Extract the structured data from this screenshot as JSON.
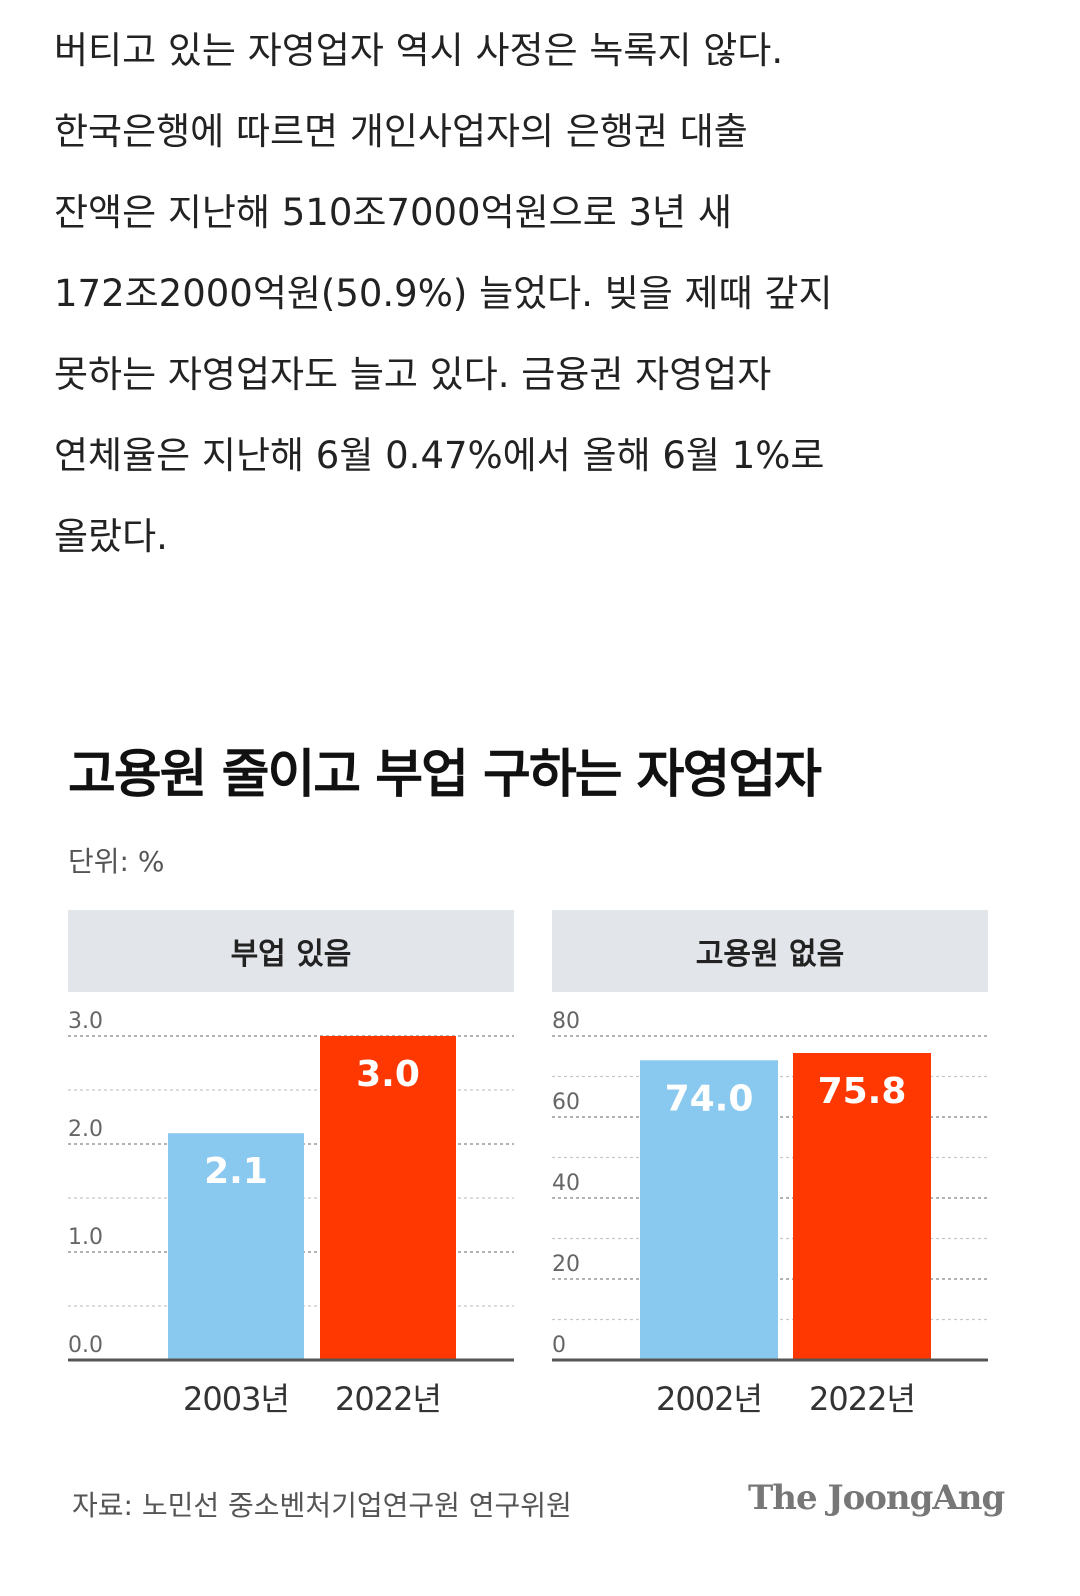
{
  "article": {
    "lines": [
      "버티고 있는 자영업자 역시 사정은 녹록지 않다.",
      "한국은행에 따르면 개인사업자의 은행권 대출",
      "잔액은 지난해 510조7000억원으로 3년 새",
      "172조2000억원(50.9%) 늘었다. 빚을 제때 갚지",
      "못하는 자영업자도 늘고 있다. 금융권 자영업자",
      "연체율은 지난해 6월 0.47%에서 올해 6월 1%로",
      "올랐다."
    ]
  },
  "infographic": {
    "title": "고용원 줄이고 부업 구하는 자영업자",
    "unit": "단위: %",
    "source": "자료: 노민선 중소벤처기업연구원 연구위원",
    "brand": "The JoongAng"
  },
  "colors": {
    "blue": "#8ac9ef",
    "red": "#ff3700",
    "panel_bg": "#e2e6ea"
  },
  "chart_data": [
    {
      "type": "bar",
      "title": "부업 있음",
      "categories": [
        "2003년",
        "2022년"
      ],
      "values": [
        2.1,
        3.0
      ],
      "value_labels": [
        "2.1",
        "3.0"
      ],
      "bar_colors": [
        "#8ac9ef",
        "#ff3700"
      ],
      "ylim": [
        0,
        3.0
      ],
      "yticks": [
        0,
        1,
        2,
        3
      ],
      "ytick_labels": [
        "0.0",
        "1.0",
        "2.0",
        "3.0"
      ],
      "grid": true
    },
    {
      "type": "bar",
      "title": "고용원 없음",
      "categories": [
        "2002년",
        "2022년"
      ],
      "values": [
        74.0,
        75.8
      ],
      "value_labels": [
        "74.0",
        "75.8"
      ],
      "bar_colors": [
        "#8ac9ef",
        "#ff3700"
      ],
      "ylim": [
        0,
        80
      ],
      "yticks": [
        0,
        20,
        40,
        60,
        80
      ],
      "ytick_labels": [
        "0",
        "20",
        "40",
        "60",
        "80"
      ],
      "grid": true
    }
  ]
}
